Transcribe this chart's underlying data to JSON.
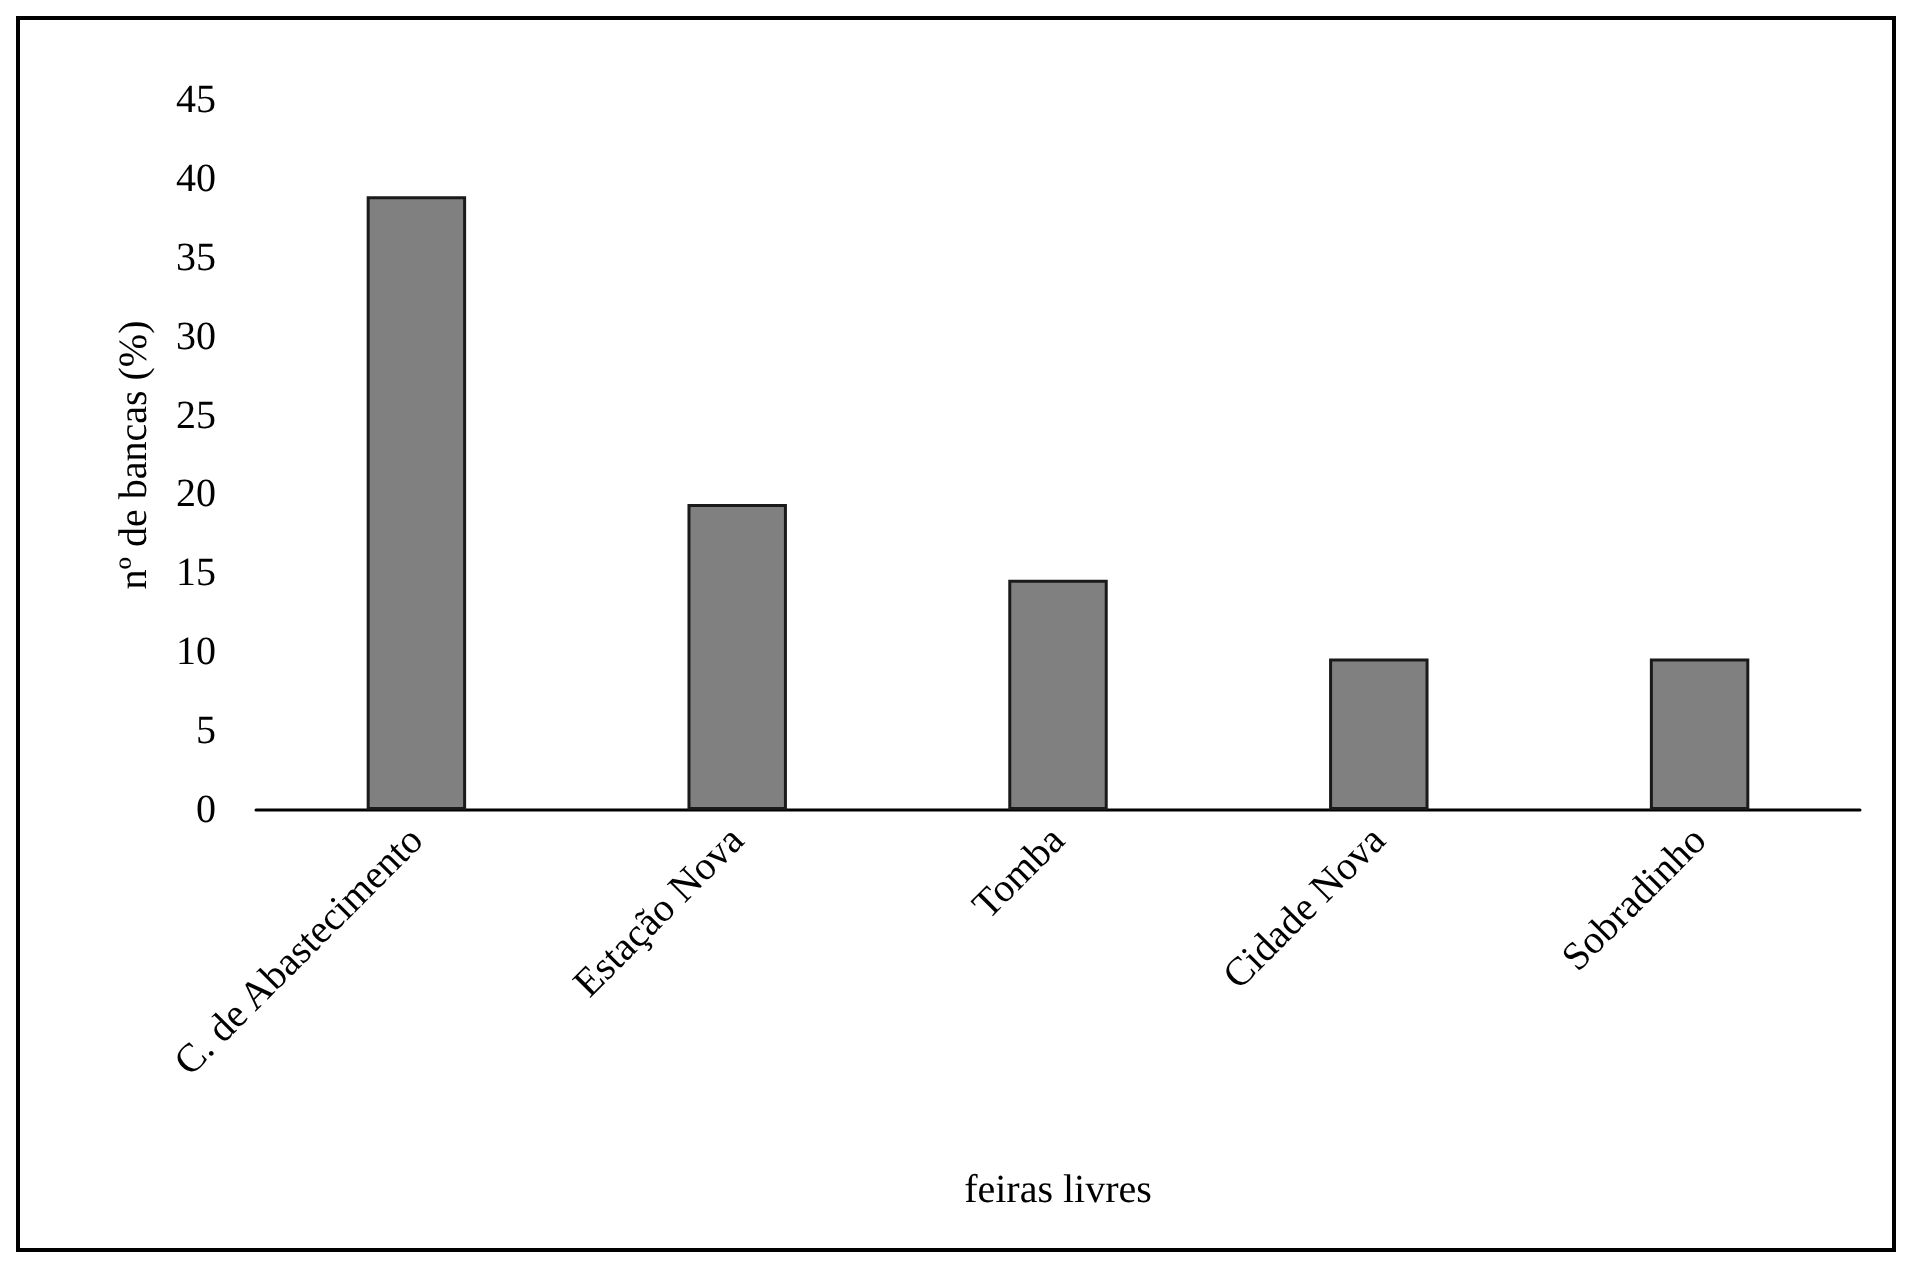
{
  "chart_data": {
    "type": "bar",
    "xlabel": "feiras livres",
    "ylabel": "nº de bancas (%)",
    "categories": [
      "C. de Abastecimento",
      "Estação Nova",
      "Tomba",
      "Cidade Nova",
      "Sobradinho"
    ],
    "values": [
      38.9,
      19.4,
      14.6,
      9.6,
      9.6
    ],
    "color": "#808080",
    "ylim": [
      0,
      45
    ],
    "yticks": [
      0,
      5,
      10,
      15,
      20,
      25,
      30,
      35,
      40,
      45
    ],
    "grid": false
  }
}
